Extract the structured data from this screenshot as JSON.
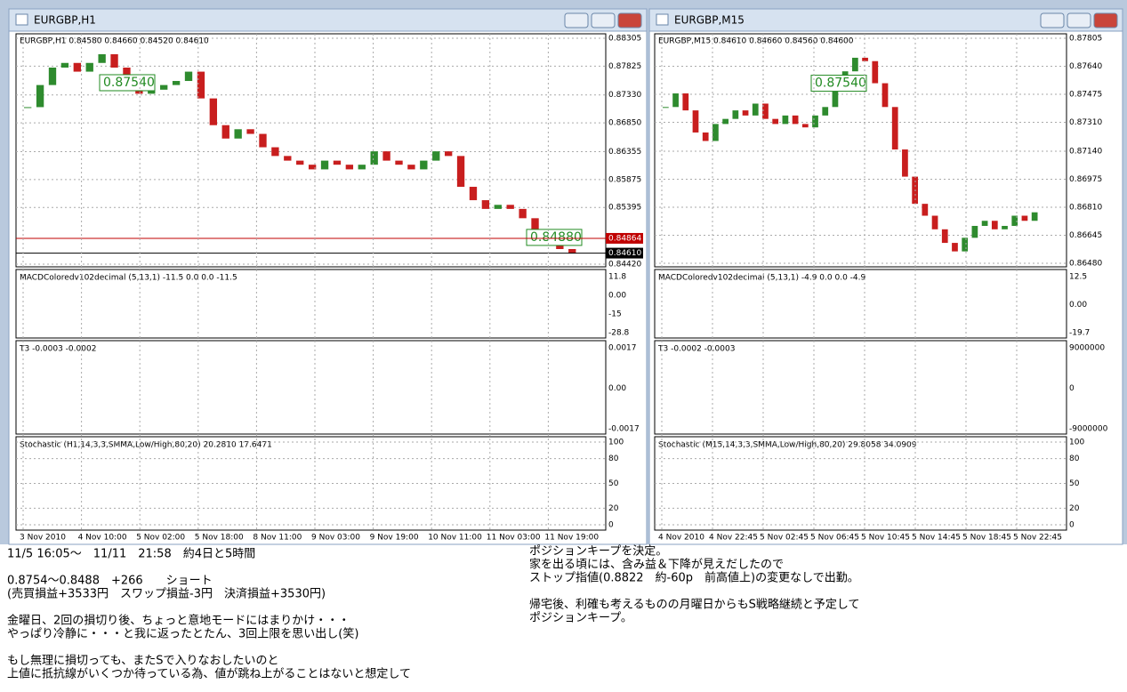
{
  "windows": [
    {
      "title": "EURGBP,H1",
      "info": "EURGBP,H1  0.84580 0.84660 0.84520 0.84610",
      "ylim": [
        0.84374,
        0.88381
      ],
      "price_ticks": [
        {
          "value": 0.88305,
          "label": "0.88305"
        },
        {
          "value": 0.87825,
          "label": "0.87825"
        },
        {
          "value": 0.8733,
          "label": "0.87330"
        },
        {
          "value": 0.8685,
          "label": "0.86850"
        },
        {
          "value": 0.86355,
          "label": "0.86355"
        },
        {
          "value": 0.85875,
          "label": "0.85875"
        },
        {
          "value": 0.85395,
          "label": "0.85395"
        },
        {
          "value": 0.8442,
          "label": "0.84420"
        }
      ],
      "closes": [
        0.8712,
        0.875,
        0.878,
        0.8788,
        0.8773,
        0.8788,
        0.8803,
        0.878,
        0.875,
        0.8735,
        0.8742,
        0.875,
        0.8757,
        0.8773,
        0.8727,
        0.8681,
        0.8658,
        0.8674,
        0.8666,
        0.8643,
        0.8628,
        0.862,
        0.8613,
        0.8605,
        0.862,
        0.8613,
        0.8605,
        0.8613,
        0.8636,
        0.862,
        0.8613,
        0.8605,
        0.862,
        0.8636,
        0.8628,
        0.8575,
        0.8552,
        0.8537,
        0.8544,
        0.8537,
        0.8521,
        0.8491,
        0.8476,
        0.8468,
        0.8461
      ],
      "boxes": [
        {
          "value": 0.8754,
          "label": "0.87540"
        },
        {
          "value": 0.8488,
          "label": "0.84880"
        }
      ],
      "tags": [
        {
          "value": 0.84864,
          "label": "0.84864",
          "color": "#c00000"
        },
        {
          "value": 0.8461,
          "label": "0.84610",
          "color": "#000000"
        }
      ],
      "panels": [
        {
          "label": "MACDColoredv102decimal (5,13,1) -11.5 0.0 0.0 -11.5",
          "ticks": [
            "11.8",
            "0.00",
            "-15",
            "-28.8"
          ]
        },
        {
          "label": "T3 -0.0003 -0.0002",
          "ticks": [
            "0.0017",
            "0.00",
            "-0.0017"
          ]
        },
        {
          "label": "Stochastic (H1,14,3,3,SMMA,Low/High,80,20) 20.2810 17.6471",
          "ticks": [
            100,
            80,
            50,
            20,
            0
          ]
        }
      ],
      "dates": [
        "3 Nov 2010",
        "4 Nov 10:00",
        "5 Nov 02:00",
        "5 Nov 18:00",
        "8 Nov 11:00",
        "9 Nov 03:00",
        "9 Nov 19:00",
        "10 Nov 11:00",
        "11 Nov 03:00",
        "11 Nov 19:00"
      ]
    },
    {
      "title": "EURGBP,M15",
      "info": "EURGBP,M15  0.84610 0.84660 0.84560 0.84600",
      "ylim": [
        0.86459,
        0.87831
      ],
      "price_ticks": [
        {
          "value": 0.87805,
          "label": "0.87805"
        },
        {
          "value": 0.8764,
          "label": "0.87640"
        },
        {
          "value": 0.87475,
          "label": "0.87475"
        },
        {
          "value": 0.8731,
          "label": "0.87310"
        },
        {
          "value": 0.8714,
          "label": "0.87140"
        },
        {
          "value": 0.86975,
          "label": "0.86975"
        },
        {
          "value": 0.8681,
          "label": "0.86810"
        },
        {
          "value": 0.86645,
          "label": "0.86645"
        },
        {
          "value": 0.8648,
          "label": "0.86480"
        }
      ],
      "closes": [
        0.874,
        0.8748,
        0.8738,
        0.8725,
        0.872,
        0.873,
        0.8733,
        0.8738,
        0.8735,
        0.8742,
        0.8733,
        0.873,
        0.8735,
        0.873,
        0.8728,
        0.8735,
        0.874,
        0.8751,
        0.8761,
        0.8769,
        0.8767,
        0.8754,
        0.874,
        0.8715,
        0.8699,
        0.8683,
        0.8676,
        0.8668,
        0.866,
        0.8655,
        0.8663,
        0.867,
        0.8673,
        0.8668,
        0.867,
        0.8676,
        0.8673,
        0.8678
      ],
      "boxes": [
        {
          "value": 0.8754,
          "label": "0.87540"
        }
      ],
      "tags": [],
      "panels": [
        {
          "label": "MACDColoredv102decimal (5,13,1) -4.9 0.0 0.0 -4.9",
          "ticks": [
            "12.5",
            "0.00",
            "-19.7"
          ]
        },
        {
          "label": "T3 -0.0002 -0.0003",
          "ticks": [
            "9000000",
            "0",
            "-9000000"
          ]
        },
        {
          "label": "Stochastic (M15,14,3,3,SMMA,Low/High,80,20) 29.8058 34.0909",
          "ticks": [
            100,
            80,
            50,
            20,
            0
          ]
        }
      ],
      "dates": [
        "4 Nov 2010",
        "4 Nov 22:45",
        "5 Nov 02:45",
        "5 Nov 06:45",
        "5 Nov 10:45",
        "5 Nov 14:45",
        "5 Nov 18:45",
        "5 Nov 22:45"
      ]
    }
  ],
  "notes": {
    "left": [
      [
        "11/5 16:05～　11/11　21:58　約4日と5時間"
      ],
      [
        "0.8754～0.8488　+266　　ショート",
        "(売買損益+3533円　スワップ損益-3円　決済損益+3530円)"
      ],
      [
        "金曜日、2回の損切り後、ちょっと意地モードにはまりかけ・・・",
        "やっぱり冷静に・・・と我に返ったとたん、3回上限を思い出し(笑)"
      ],
      [
        "もし無理に損切っても、またSで入りなおしたいのと",
        "上値に抵抗線がいくつか待っている為、値が跳ね上がることはないと想定して"
      ]
    ],
    "right": [
      [
        "ポジションキープを決定。",
        "家を出る頃には、含み益＆下降が見えだしたので",
        "ストップ指値(0.8822　約-60p　前高値上)の変更なしで出勤。"
      ],
      [
        "帰宅後、利確も考えるものの月曜日からもS戦略継続と予定して",
        "ポジションキープ。"
      ]
    ]
  }
}
